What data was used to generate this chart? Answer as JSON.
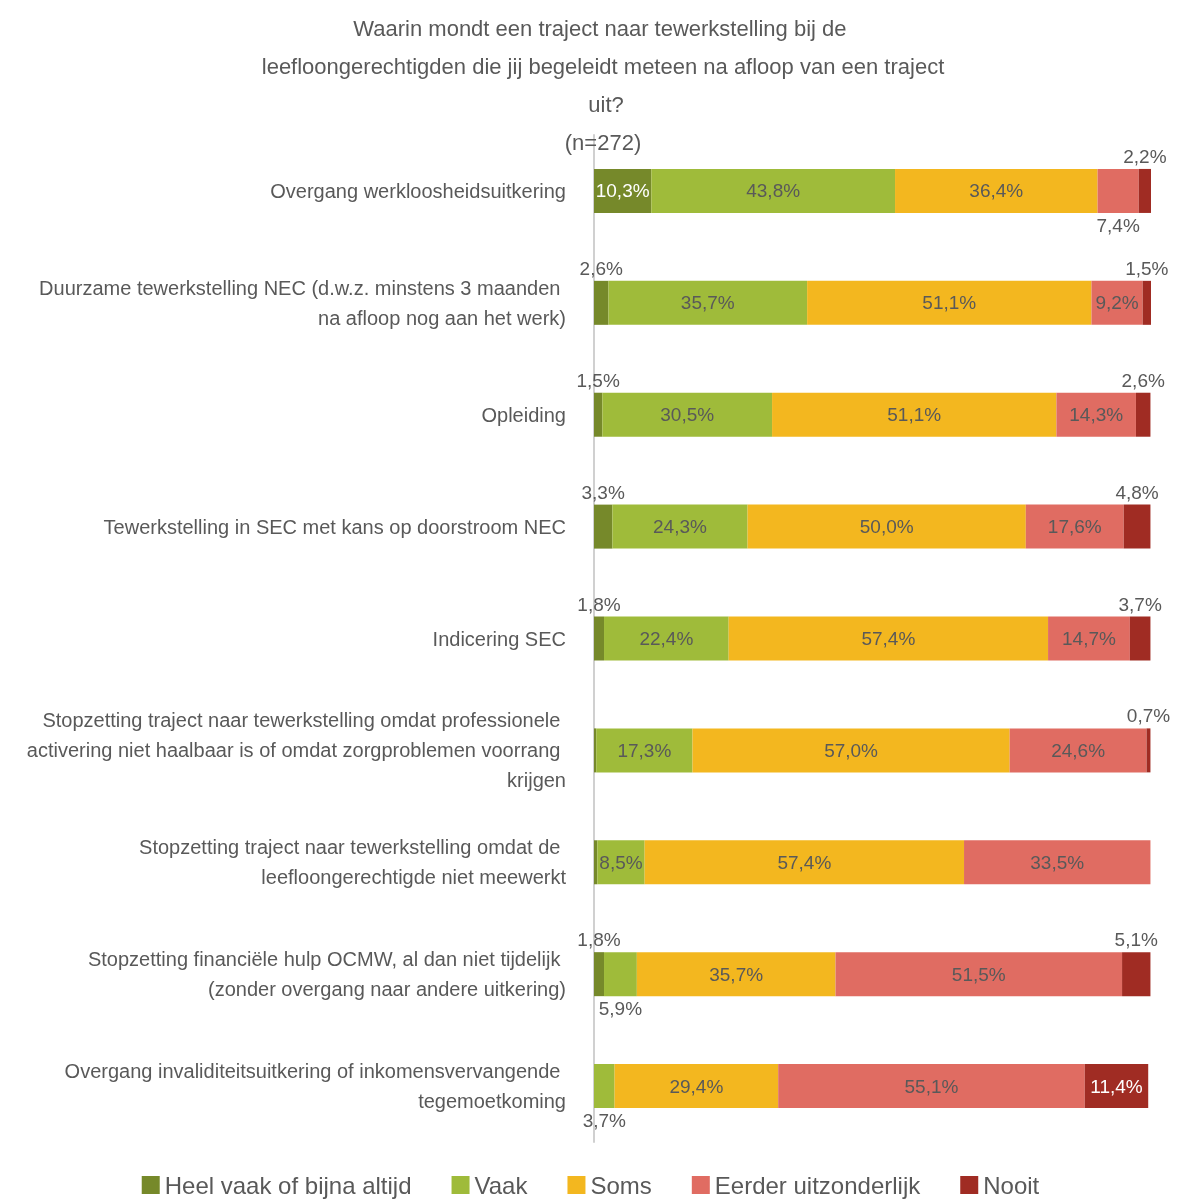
{
  "chart_data": {
    "type": "bar",
    "orientation": "horizontal",
    "stacked": true,
    "title": "Waarin mondt een traject naar tewerkstelling bij de leefloongerechtigden die jij begeleidt meteen na afloop van een traject uit?",
    "subtitle": "(n=272)",
    "categories": [
      "Overgang werkloosheidsuitkering",
      "Duurzame tewerkstelling NEC (d.w.z. minstens 3 maanden na afloop nog aan het werk)",
      "Opleiding",
      "Tewerkstelling in SEC met kans op doorstroom NEC",
      "Indicering SEC",
      "Stopzetting traject naar tewerkstelling omdat professionele activering niet haalbaar is of omdat zorgproblemen voorrang krijgen",
      "Stopzetting traject naar tewerkstelling omdat de leefloongerechtigde niet meewerkt",
      "Stopzetting financiële hulp OCMW, al dan niet tijdelijk (zonder overgang naar andere uitkering)",
      "Overgang invaliditeitsuitkering of inkomensvervangende tegemoetkoming"
    ],
    "series": [
      {
        "name": "Heel vaak of bijna altijd",
        "color": "#76892a",
        "values": [
          10.3,
          2.6,
          1.5,
          3.3,
          1.8,
          0.4,
          0.6,
          1.8,
          null
        ],
        "value_labels": [
          "10,3%",
          "2,6%",
          "1,5%",
          "3,3%",
          "1,8%",
          null,
          null,
          "1,8%",
          null
        ]
      },
      {
        "name": "Vaak",
        "color": "#9fbb3a",
        "values": [
          43.8,
          35.7,
          30.5,
          24.3,
          22.4,
          17.3,
          8.5,
          5.9,
          3.7
        ],
        "value_labels": [
          "43,8%",
          "35,7%",
          "30,5%",
          "24,3%",
          "22,4%",
          "17,3%",
          "8,5%",
          "5,9%",
          "3,7%"
        ]
      },
      {
        "name": "Soms",
        "color": "#f3b71f",
        "values": [
          36.4,
          51.1,
          51.1,
          50.0,
          57.4,
          57.0,
          57.4,
          35.7,
          29.4
        ],
        "value_labels": [
          "36,4%",
          "51,1%",
          "51,1%",
          "50,0%",
          "57,4%",
          "57,0%",
          "57,4%",
          "35,7%",
          "29,4%"
        ]
      },
      {
        "name": "Eerder uitzonderlijk",
        "color": "#e06c62",
        "values": [
          7.4,
          9.2,
          14.3,
          17.6,
          14.7,
          24.6,
          33.5,
          51.5,
          55.1
        ],
        "value_labels": [
          "7,4%",
          "9,2%",
          "14,3%",
          "17,6%",
          "14,7%",
          "24,6%",
          "33,5%",
          "51,5%",
          "55,1%"
        ]
      },
      {
        "name": "Nooit",
        "color": "#a02c23",
        "values": [
          2.2,
          1.5,
          2.6,
          4.8,
          3.7,
          0.7,
          null,
          5.1,
          11.4
        ],
        "value_labels": [
          "2,2%",
          "1,5%",
          "2,6%",
          "4,8%",
          "3,7%",
          "0,7%",
          null,
          "5,1%",
          "11,4%"
        ]
      }
    ],
    "xlim": [
      0,
      100.1
    ],
    "tick_labels": "y",
    "grid": false,
    "legend": "bottom"
  }
}
